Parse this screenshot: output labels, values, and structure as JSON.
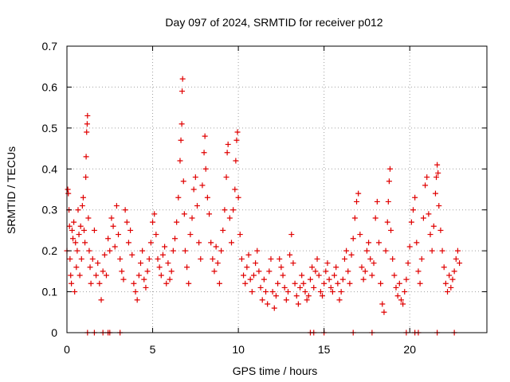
{
  "chart_data": {
    "type": "scatter",
    "title": "Day 097 of 2024, SRMTID for receiver p012",
    "xlabel": "GPS time / hours",
    "ylabel": "SRMTID / TECUs",
    "xlim": [
      0,
      24.5
    ],
    "ylim": [
      0,
      0.7
    ],
    "x_ticks": [
      0,
      5,
      10,
      15,
      20
    ],
    "x_tick_labels": [
      "0",
      "5",
      "10",
      "15",
      "20"
    ],
    "y_ticks": [
      0,
      0.1,
      0.2,
      0.3,
      0.4,
      0.5,
      0.6,
      0.7
    ],
    "y_tick_labels": [
      "0",
      "0.1",
      "0.2",
      "0.3",
      "0.4",
      "0.5",
      "0.6",
      "0.7"
    ],
    "grid": true,
    "marker": "plus",
    "marker_color": "#e00000",
    "series": [
      {
        "name": "SRMTID",
        "points": [
          [
            0.0,
            0.2
          ],
          [
            0.05,
            0.35
          ],
          [
            0.08,
            0.34
          ],
          [
            0.12,
            0.3
          ],
          [
            0.15,
            0.26
          ],
          [
            0.18,
            0.18
          ],
          [
            0.22,
            0.14
          ],
          [
            0.26,
            0.12
          ],
          [
            0.3,
            0.25
          ],
          [
            0.35,
            0.23
          ],
          [
            0.4,
            0.27
          ],
          [
            0.45,
            0.1
          ],
          [
            0.5,
            0.22
          ],
          [
            0.55,
            0.16
          ],
          [
            0.6,
            0.2
          ],
          [
            0.65,
            0.3
          ],
          [
            0.7,
            0.24
          ],
          [
            0.75,
            0.14
          ],
          [
            0.8,
            0.26
          ],
          [
            0.85,
            0.18
          ],
          [
            0.9,
            0.31
          ],
          [
            0.95,
            0.33
          ],
          [
            1.0,
            0.25
          ],
          [
            1.05,
            0.22
          ],
          [
            1.1,
            0.38
          ],
          [
            1.12,
            0.43
          ],
          [
            1.15,
            0.49
          ],
          [
            1.18,
            0.51
          ],
          [
            1.2,
            0.53
          ],
          [
            1.25,
            0.28
          ],
          [
            1.3,
            0.2
          ],
          [
            1.35,
            0.16
          ],
          [
            1.4,
            0.12
          ],
          [
            1.5,
            0.18
          ],
          [
            1.6,
            0.25
          ],
          [
            1.7,
            0.14
          ],
          [
            1.8,
            0.17
          ],
          [
            1.9,
            0.12
          ],
          [
            2.0,
            0.08
          ],
          [
            2.1,
            0.15
          ],
          [
            2.2,
            0.19
          ],
          [
            2.3,
            0.14
          ],
          [
            2.4,
            0.23
          ],
          [
            2.5,
            0.2
          ],
          [
            2.6,
            0.28
          ],
          [
            2.7,
            0.26
          ],
          [
            2.8,
            0.21
          ],
          [
            2.9,
            0.31
          ],
          [
            3.0,
            0.24
          ],
          [
            3.1,
            0.18
          ],
          [
            3.2,
            0.15
          ],
          [
            3.3,
            0.13
          ],
          [
            3.4,
            0.3
          ],
          [
            3.5,
            0.27
          ],
          [
            3.6,
            0.22
          ],
          [
            3.7,
            0.25
          ],
          [
            3.8,
            0.19
          ],
          [
            3.9,
            0.12
          ],
          [
            4.0,
            0.1
          ],
          [
            4.1,
            0.08
          ],
          [
            4.2,
            0.14
          ],
          [
            4.3,
            0.17
          ],
          [
            4.4,
            0.2
          ],
          [
            4.5,
            0.13
          ],
          [
            4.6,
            0.11
          ],
          [
            4.7,
            0.15
          ],
          [
            4.8,
            0.18
          ],
          [
            4.9,
            0.22
          ],
          [
            5.0,
            0.27
          ],
          [
            5.1,
            0.29
          ],
          [
            5.2,
            0.24
          ],
          [
            5.3,
            0.18
          ],
          [
            5.4,
            0.16
          ],
          [
            5.5,
            0.14
          ],
          [
            5.6,
            0.19
          ],
          [
            5.7,
            0.21
          ],
          [
            5.8,
            0.12
          ],
          [
            5.9,
            0.17
          ],
          [
            6.0,
            0.13
          ],
          [
            6.1,
            0.15
          ],
          [
            6.2,
            0.2
          ],
          [
            6.3,
            0.23
          ],
          [
            6.4,
            0.27
          ],
          [
            6.5,
            0.33
          ],
          [
            6.6,
            0.42
          ],
          [
            6.65,
            0.47
          ],
          [
            6.7,
            0.51
          ],
          [
            6.72,
            0.59
          ],
          [
            6.75,
            0.62
          ],
          [
            6.8,
            0.37
          ],
          [
            6.85,
            0.29
          ],
          [
            6.9,
            0.2
          ],
          [
            7.0,
            0.16
          ],
          [
            7.1,
            0.12
          ],
          [
            7.2,
            0.24
          ],
          [
            7.3,
            0.28
          ],
          [
            7.4,
            0.35
          ],
          [
            7.5,
            0.38
          ],
          [
            7.6,
            0.31
          ],
          [
            7.7,
            0.22
          ],
          [
            7.8,
            0.18
          ],
          [
            7.9,
            0.36
          ],
          [
            8.0,
            0.44
          ],
          [
            8.05,
            0.48
          ],
          [
            8.1,
            0.4
          ],
          [
            8.2,
            0.33
          ],
          [
            8.3,
            0.29
          ],
          [
            8.4,
            0.22
          ],
          [
            8.5,
            0.18
          ],
          [
            8.6,
            0.15
          ],
          [
            8.7,
            0.21
          ],
          [
            8.8,
            0.17
          ],
          [
            8.9,
            0.12
          ],
          [
            9.0,
            0.2
          ],
          [
            9.1,
            0.25
          ],
          [
            9.2,
            0.3
          ],
          [
            9.3,
            0.38
          ],
          [
            9.35,
            0.44
          ],
          [
            9.4,
            0.46
          ],
          [
            9.5,
            0.28
          ],
          [
            9.6,
            0.22
          ],
          [
            9.7,
            0.3
          ],
          [
            9.8,
            0.35
          ],
          [
            9.85,
            0.42
          ],
          [
            9.9,
            0.47
          ],
          [
            9.95,
            0.49
          ],
          [
            10.0,
            0.33
          ],
          [
            10.1,
            0.24
          ],
          [
            10.2,
            0.18
          ],
          [
            10.3,
            0.14
          ],
          [
            10.4,
            0.12
          ],
          [
            10.5,
            0.16
          ],
          [
            10.6,
            0.19
          ],
          [
            10.7,
            0.13
          ],
          [
            10.8,
            0.1
          ],
          [
            10.9,
            0.14
          ],
          [
            11.0,
            0.17
          ],
          [
            11.1,
            0.2
          ],
          [
            11.2,
            0.15
          ],
          [
            11.3,
            0.11
          ],
          [
            11.4,
            0.08
          ],
          [
            11.5,
            0.13
          ],
          [
            11.6,
            0.1
          ],
          [
            11.7,
            0.07
          ],
          [
            11.8,
            0.15
          ],
          [
            11.9,
            0.18
          ],
          [
            12.0,
            0.1
          ],
          [
            12.1,
            0.06
          ],
          [
            12.2,
            0.09
          ],
          [
            12.3,
            0.12
          ],
          [
            12.4,
            0.18
          ],
          [
            12.5,
            0.16
          ],
          [
            12.6,
            0.14
          ],
          [
            12.7,
            0.11
          ],
          [
            12.8,
            0.08
          ],
          [
            12.9,
            0.1
          ],
          [
            13.0,
            0.19
          ],
          [
            13.1,
            0.24
          ],
          [
            13.2,
            0.17
          ],
          [
            13.3,
            0.12
          ],
          [
            13.4,
            0.09
          ],
          [
            13.5,
            0.07
          ],
          [
            13.6,
            0.11
          ],
          [
            13.7,
            0.14
          ],
          [
            13.8,
            0.12
          ],
          [
            13.9,
            0.1
          ],
          [
            14.0,
            0.08
          ],
          [
            14.1,
            0.09
          ],
          [
            14.2,
            0.13
          ],
          [
            14.3,
            0.16
          ],
          [
            14.4,
            0.11
          ],
          [
            14.5,
            0.15
          ],
          [
            14.6,
            0.18
          ],
          [
            14.7,
            0.14
          ],
          [
            14.8,
            0.1
          ],
          [
            14.9,
            0.09
          ],
          [
            15.0,
            0.12
          ],
          [
            15.1,
            0.15
          ],
          [
            15.2,
            0.17
          ],
          [
            15.3,
            0.13
          ],
          [
            15.4,
            0.11
          ],
          [
            15.5,
            0.1
          ],
          [
            15.6,
            0.14
          ],
          [
            15.7,
            0.16
          ],
          [
            15.8,
            0.12
          ],
          [
            15.9,
            0.08
          ],
          [
            16.0,
            0.1
          ],
          [
            16.1,
            0.13
          ],
          [
            16.2,
            0.18
          ],
          [
            16.3,
            0.2
          ],
          [
            16.4,
            0.15
          ],
          [
            16.5,
            0.12
          ],
          [
            16.6,
            0.19
          ],
          [
            16.7,
            0.23
          ],
          [
            16.8,
            0.28
          ],
          [
            16.9,
            0.32
          ],
          [
            17.0,
            0.34
          ],
          [
            17.1,
            0.24
          ],
          [
            17.2,
            0.16
          ],
          [
            17.3,
            0.13
          ],
          [
            17.4,
            0.15
          ],
          [
            17.5,
            0.2
          ],
          [
            17.6,
            0.22
          ],
          [
            17.7,
            0.18
          ],
          [
            17.8,
            0.14
          ],
          [
            17.9,
            0.17
          ],
          [
            18.0,
            0.28
          ],
          [
            18.1,
            0.32
          ],
          [
            18.2,
            0.22
          ],
          [
            18.3,
            0.12
          ],
          [
            18.4,
            0.07
          ],
          [
            18.5,
            0.05
          ],
          [
            18.6,
            0.2
          ],
          [
            18.7,
            0.27
          ],
          [
            18.75,
            0.32
          ],
          [
            18.8,
            0.37
          ],
          [
            18.85,
            0.4
          ],
          [
            18.9,
            0.25
          ],
          [
            19.0,
            0.18
          ],
          [
            19.1,
            0.14
          ],
          [
            19.2,
            0.11
          ],
          [
            19.3,
            0.09
          ],
          [
            19.4,
            0.12
          ],
          [
            19.5,
            0.08
          ],
          [
            19.6,
            0.07
          ],
          [
            19.7,
            0.1
          ],
          [
            19.8,
            0.13
          ],
          [
            19.9,
            0.17
          ],
          [
            20.0,
            0.21
          ],
          [
            20.1,
            0.27
          ],
          [
            20.2,
            0.3
          ],
          [
            20.3,
            0.33
          ],
          [
            20.4,
            0.22
          ],
          [
            20.5,
            0.15
          ],
          [
            20.6,
            0.12
          ],
          [
            20.7,
            0.18
          ],
          [
            20.8,
            0.28
          ],
          [
            20.9,
            0.36
          ],
          [
            21.0,
            0.38
          ],
          [
            21.1,
            0.29
          ],
          [
            21.2,
            0.24
          ],
          [
            21.3,
            0.2
          ],
          [
            21.4,
            0.26
          ],
          [
            21.5,
            0.34
          ],
          [
            21.55,
            0.38
          ],
          [
            21.6,
            0.41
          ],
          [
            21.65,
            0.39
          ],
          [
            21.7,
            0.31
          ],
          [
            21.8,
            0.25
          ],
          [
            21.9,
            0.2
          ],
          [
            22.0,
            0.16
          ],
          [
            22.1,
            0.12
          ],
          [
            22.2,
            0.1
          ],
          [
            22.3,
            0.14
          ],
          [
            22.4,
            0.11
          ],
          [
            22.5,
            0.13
          ],
          [
            22.6,
            0.15
          ],
          [
            22.7,
            0.18
          ],
          [
            22.8,
            0.2
          ],
          [
            22.9,
            0.17
          ]
        ]
      }
    ],
    "zero_value_x": [
      1.2,
      1.6,
      2.1,
      2.4,
      2.5,
      3.1,
      14.2,
      14.4,
      15.0,
      16.7,
      17.8,
      19.8,
      20.3,
      20.5,
      21.6,
      22.6
    ]
  }
}
